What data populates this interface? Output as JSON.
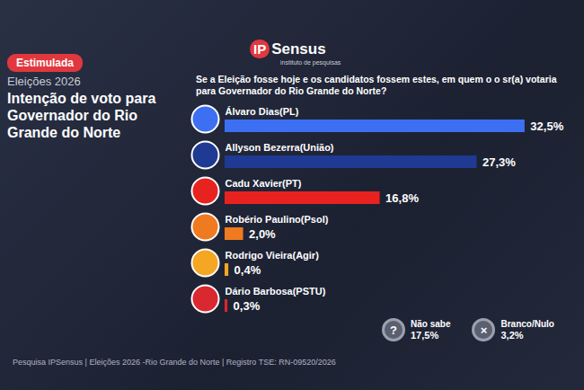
{
  "chart_data": {
    "type": "bar",
    "orientation": "horizontal",
    "badge": "Estimulada",
    "kicker": "Eleições 2026",
    "title": "Intenção de voto para Governador do Rio Grande do Norte",
    "logo": "IPSensus",
    "logo_tagline": "instituto de pesquisas",
    "subtitle": "Se a Eleição fosse hoje e os candidatos fossem estes, em quem o o sr(a) votaria para  Governador do Rio Grande do Norte?",
    "categories": [
      "Álvaro Dias(PL)",
      "Allyson Bezerra(União)",
      "Cadu Xavier(PT)",
      "Robério Paulino(Psol)",
      "Rodrigo Vieira(Agir)",
      "Dário Barbosa(PSTU)"
    ],
    "values": [
      32.5,
      27.3,
      16.8,
      2.0,
      0.4,
      0.3
    ],
    "value_labels": [
      "32,5%",
      "27,3%",
      "16,8%",
      "2,0%",
      "0,4%",
      "0,3%"
    ],
    "colors": [
      "#3d6ff2",
      "#1f3a93",
      "#e8231f",
      "#f07a1f",
      "#f5a623",
      "#d9282f"
    ],
    "xlim": [
      0,
      33
    ],
    "tick_labels": false,
    "grid": false,
    "data_labels": true,
    "others": [
      {
        "name": "Não sabe",
        "icon": "?",
        "value": 17.5,
        "value_label": "17,5%"
      },
      {
        "name": "Branco/Nulo",
        "icon": "×",
        "value": 3.2,
        "value_label": "3,2%"
      }
    ],
    "caption": "Pesquisa IPSensus | Eleições 2026 -Rio Grande do Norte | Registro TSE:  RN-09520/2026"
  }
}
